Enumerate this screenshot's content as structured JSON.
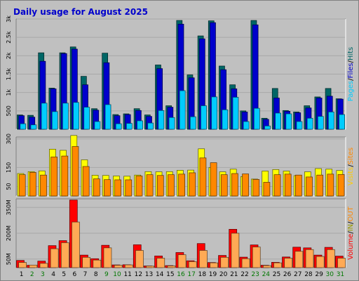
{
  "chart_data": {
    "title": "Daily usage for August 2025",
    "type": "bar",
    "days": [
      "1",
      "2",
      "3",
      "4",
      "5",
      "6",
      "7",
      "8",
      "9",
      "10",
      "11",
      "12",
      "13",
      "14",
      "15",
      "16",
      "17",
      "18",
      "19",
      "20",
      "21",
      "22",
      "23",
      "24",
      "25",
      "26",
      "27",
      "28",
      "29",
      "30",
      "31"
    ],
    "weekend_days": [
      "2",
      "3",
      "9",
      "10",
      "16",
      "17",
      "23",
      "24",
      "30",
      "31"
    ],
    "panels": [
      {
        "id": "hits",
        "ylim": [
          0,
          3000
        ],
        "ticks": [
          "500",
          "1k",
          "1.5k",
          "2k",
          "2.5k",
          "3k"
        ],
        "tick_values": [
          500,
          1000,
          1500,
          2000,
          2500,
          3000
        ],
        "series": [
          {
            "name": "Hits",
            "color": "#006666",
            "values": [
              390,
              380,
              2080,
              1120,
              2080,
              2240,
              1440,
              560,
              2070,
              400,
              420,
              560,
              390,
              1750,
              640,
              2960,
              1480,
              2540,
              2950,
              1720,
              1210,
              500,
              2960,
              300,
              1110,
              510,
              470,
              640,
              880,
              1110,
              830
            ]
          },
          {
            "name": "Files",
            "color": "#0000cc",
            "values": [
              370,
              330,
              1850,
              1100,
              2060,
              2180,
              1210,
              520,
              1810,
              370,
              400,
              510,
              350,
              1650,
              600,
              2860,
              1400,
              2460,
              2900,
              1620,
              1100,
              470,
              2840,
              270,
              850,
              490,
              450,
              580,
              850,
              900,
              820
            ]
          },
          {
            "name": "Pages",
            "color": "#00ccff",
            "values": [
              150,
              120,
              710,
              480,
              710,
              730,
              600,
              210,
              670,
              150,
              160,
              230,
              170,
              510,
              320,
              1050,
              340,
              640,
              880,
              530,
              870,
              210,
              570,
              90,
              440,
              420,
              210,
              300,
              350,
              470,
              400
            ]
          }
        ],
        "legend": [
          {
            "label": "Pages",
            "color": "#00ccff"
          },
          {
            "label": "/",
            "color": "#000000"
          },
          {
            "label": "Files",
            "color": "#0000cc"
          },
          {
            "label": "/",
            "color": "#000000"
          },
          {
            "label": "Hits",
            "color": "#006666"
          }
        ]
      },
      {
        "id": "visits",
        "ylim": [
          0,
          310
        ],
        "ticks": [
          "50",
          "150",
          "300"
        ],
        "tick_values": [
          50,
          150,
          300
        ],
        "series": [
          {
            "name": "Visits",
            "color": "#ffff00",
            "values": [
              118,
              128,
              132,
              246,
              240,
              318,
              190,
              109,
              108,
              105,
              104,
              110,
              128,
              127,
              128,
              135,
              136,
              248,
              150,
              127,
              141,
              102,
              89,
              131,
              139,
              131,
              107,
              127,
              144,
              141,
              134
            ]
          },
          {
            "name": "Sites",
            "color": "#ff8800",
            "values": [
              112,
              124,
              110,
              205,
              210,
              260,
              155,
              90,
              86,
              85,
              85,
              105,
              112,
              108,
              112,
              115,
              122,
              200,
              175,
              112,
              118,
              116,
              87,
              72,
              112,
              115,
              110,
              100,
              110,
              115,
              113
            ]
          }
        ],
        "legend": [
          {
            "label": "Visits",
            "color": "#ffcc00"
          },
          {
            "label": "/",
            "color": "#000000"
          },
          {
            "label": "Sites",
            "color": "#ff8800"
          }
        ]
      },
      {
        "id": "volume",
        "ylim": [
          0,
          400
        ],
        "ticks": [
          "50M",
          "200M",
          "350M"
        ],
        "tick_values": [
          50,
          200,
          350
        ],
        "series": [
          {
            "name": "Volume",
            "color": "#ff0000",
            "values": [
              42,
              14,
              38,
              128,
              157,
              393,
              73,
              52,
              130,
              16,
              17,
              133,
              10,
              68,
              12,
              88,
              40,
              140,
              30,
              71,
              223,
              61,
              132,
              14,
              31,
              62,
              119,
              115,
              73,
              118,
              67
            ]
          },
          {
            "name": "IN",
            "color": "#666600",
            "values": [
              0,
              0,
              0,
              0,
              0,
              0,
              0,
              0,
              0,
              0,
              0,
              0,
              0,
              0,
              0,
              0,
              0,
              0,
              0,
              0,
              0,
              0,
              0,
              0,
              0,
              0,
              0,
              0,
              0,
              0,
              0
            ]
          },
          {
            "name": "OUT",
            "color": "#ffaa55",
            "values": [
              30,
              15,
              25,
              110,
              145,
              265,
              60,
              44,
              115,
              14,
              16,
              100,
              9,
              55,
              10,
              75,
              35,
              100,
              28,
              60,
              200,
              52,
              120,
              12,
              28,
              55,
              95,
              105,
              65,
              105,
              55
            ]
          }
        ],
        "legend": [
          {
            "label": "Volume",
            "color": "#ff0000"
          },
          {
            "label": "/",
            "color": "#000000"
          },
          {
            "label": "IN",
            "color": "#999900"
          },
          {
            "label": "/",
            "color": "#000000"
          },
          {
            "label": "OUT",
            "color": "#ff8800"
          }
        ]
      }
    ]
  }
}
